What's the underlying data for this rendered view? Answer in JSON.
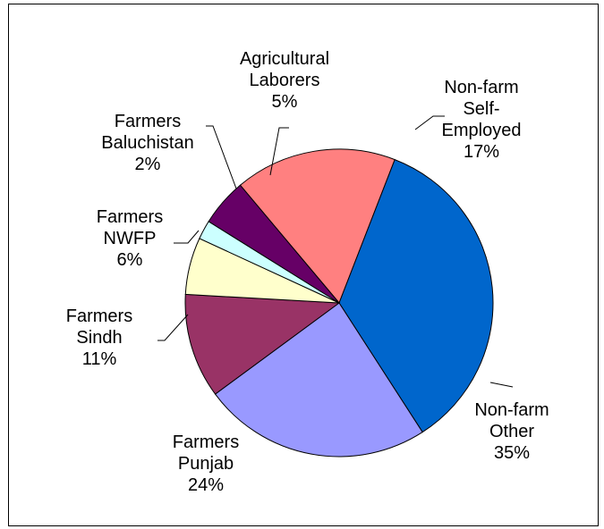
{
  "chart_data": {
    "type": "pie",
    "title": "",
    "slices": [
      {
        "label_lines": [
          "Non-farm",
          "Self-",
          "Employed"
        ],
        "pct_label": "17%",
        "value": 17,
        "color": "#ff8080"
      },
      {
        "label_lines": [
          "Non-farm",
          "Other"
        ],
        "pct_label": "35%",
        "value": 35,
        "color": "#0066cc"
      },
      {
        "label_lines": [
          "Farmers",
          "Punjab"
        ],
        "pct_label": "24%",
        "value": 24,
        "color": "#9999ff"
      },
      {
        "label_lines": [
          "Farmers",
          "Sindh"
        ],
        "pct_label": "11%",
        "value": 11,
        "color": "#993366"
      },
      {
        "label_lines": [
          "Farmers",
          "NWFP"
        ],
        "pct_label": "6%",
        "value": 6,
        "color": "#ffffcc"
      },
      {
        "label_lines": [
          "Farmers",
          "Baluchistan"
        ],
        "pct_label": "2%",
        "value": 2,
        "color": "#ccffff"
      },
      {
        "label_lines": [
          "Agricultural",
          "Laborers"
        ],
        "pct_label": "5%",
        "value": 5,
        "color": "#660066"
      }
    ],
    "legend": "none",
    "labels": "outside with leader lines"
  }
}
